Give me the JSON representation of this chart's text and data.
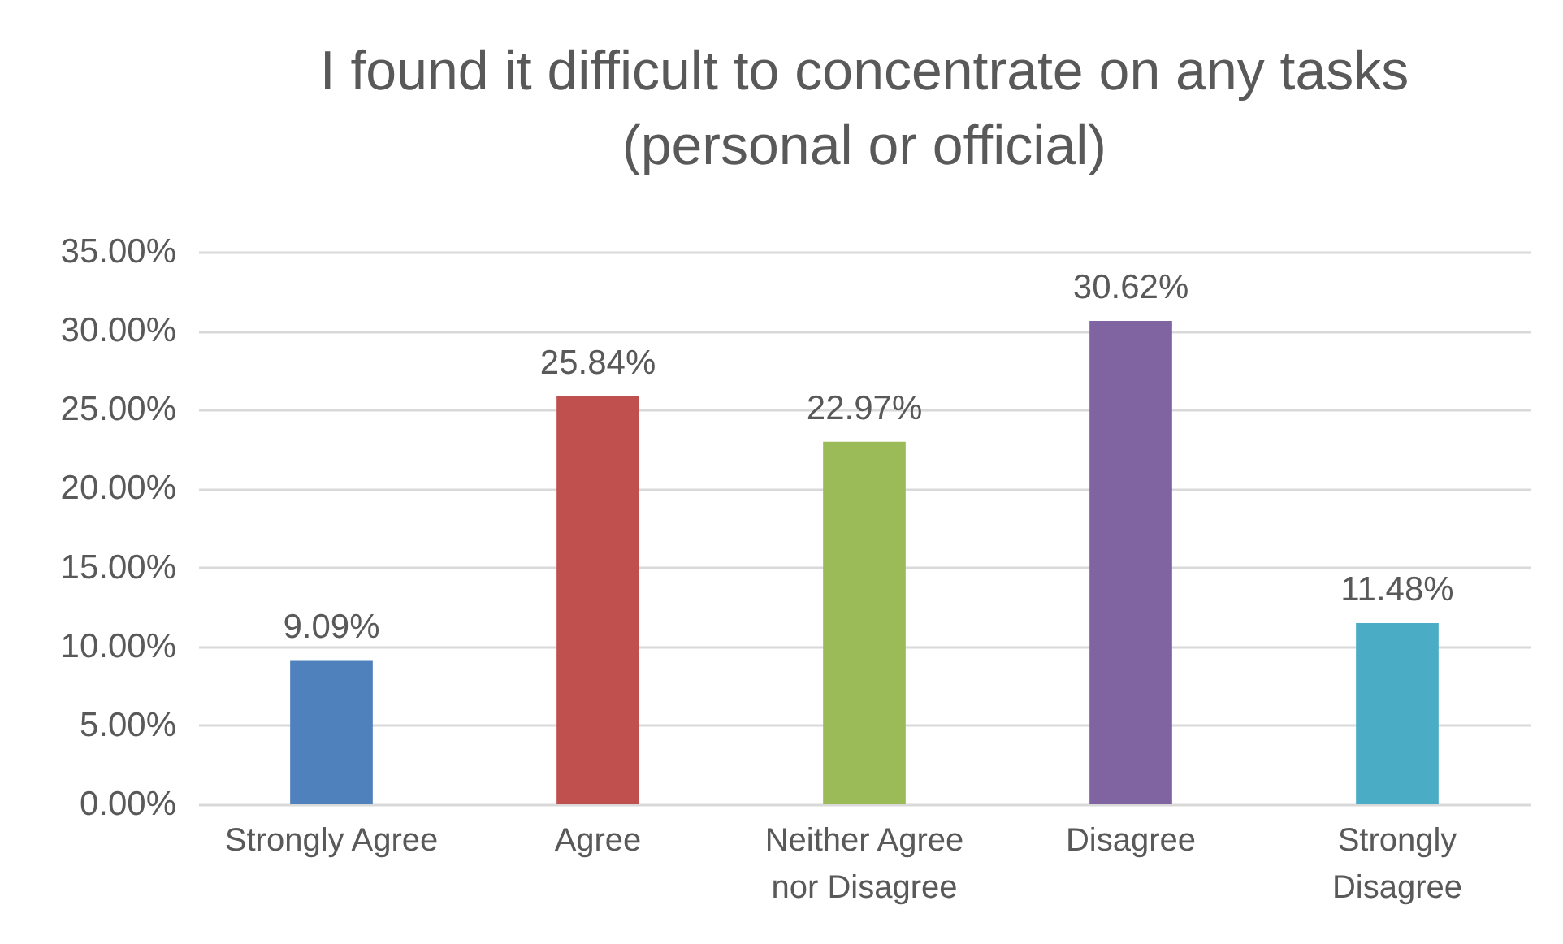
{
  "chart_data": {
    "type": "bar",
    "title": "I found it difficult to concentrate on any tasks\n(personal or official)",
    "categories": [
      "Strongly Agree",
      "Agree",
      "Neither Agree nor Disagree",
      "Disagree",
      "Strongly Disagree"
    ],
    "values": [
      9.09,
      25.84,
      22.97,
      30.62,
      11.48
    ],
    "colors": [
      "#4f81bd",
      "#c0504d",
      "#9bbb59",
      "#8064a2",
      "#4bacc6"
    ],
    "value_labels": [
      "9.09%",
      "25.84%",
      "22.97%",
      "30.62%",
      "11.48%"
    ],
    "ylim": [
      0,
      35
    ],
    "yticks": [
      {
        "value": 0,
        "label": "0.00%"
      },
      {
        "value": 5,
        "label": "5.00%"
      },
      {
        "value": 10,
        "label": "10.00%"
      },
      {
        "value": 15,
        "label": "15.00%"
      },
      {
        "value": 20,
        "label": "20.00%"
      },
      {
        "value": 25,
        "label": "25.00%"
      },
      {
        "value": 30,
        "label": "30.00%"
      },
      {
        "value": 35,
        "label": "35.00%"
      }
    ],
    "grid": "y"
  }
}
